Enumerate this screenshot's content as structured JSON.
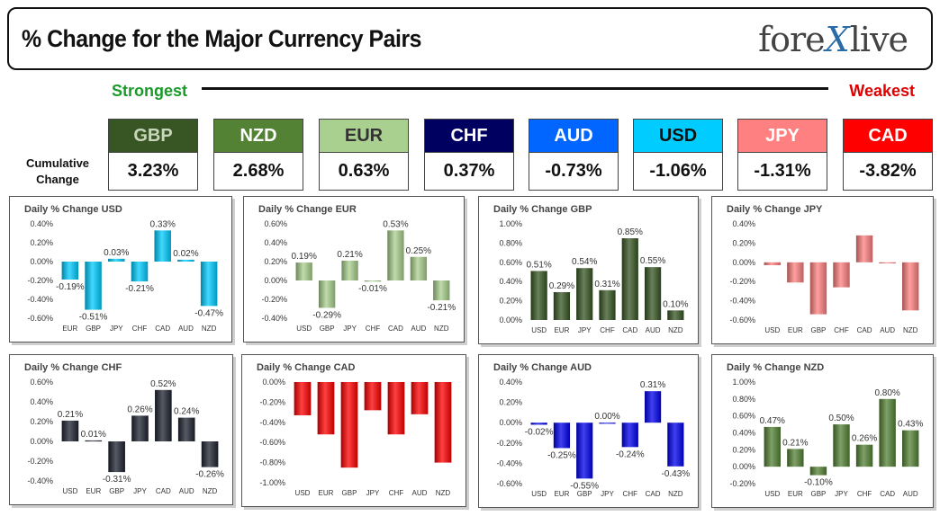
{
  "header": {
    "title": "% Change for the Major Currency Pairs",
    "logo_left": "fore",
    "logo_x": "X",
    "logo_right": "live"
  },
  "rank": {
    "strongest": "Strongest",
    "weakest": "Weakest",
    "cumulative_label_1": "Cumulative",
    "cumulative_label_2": "Change"
  },
  "currencies": [
    {
      "code": "GBP",
      "value": "3.23%",
      "color": "#375623",
      "text_color": "#c8d6bc"
    },
    {
      "code": "NZD",
      "value": "2.68%",
      "color": "#548235",
      "text_color": "#ffffff"
    },
    {
      "code": "EUR",
      "value": "0.63%",
      "color": "#a9d08e",
      "text_color": "#333333"
    },
    {
      "code": "CHF",
      "value": "0.37%",
      "color": "#000060",
      "text_color": "#ffffff"
    },
    {
      "code": "AUD",
      "value": "-0.73%",
      "color": "#0066ff",
      "text_color": "#ffffff"
    },
    {
      "code": "USD",
      "value": "-1.06%",
      "color": "#00ccff",
      "text_color": "#111111"
    },
    {
      "code": "JPY",
      "value": "-1.31%",
      "color": "#ff8080",
      "text_color": "#ffffff"
    },
    {
      "code": "CAD",
      "value": "-3.82%",
      "color": "#ff0000",
      "text_color": "#ffffff"
    }
  ],
  "chart_data": [
    {
      "type": "bar",
      "title": "Daily % Change USD",
      "categories": [
        "EUR",
        "GBP",
        "JPY",
        "CHF",
        "CAD",
        "AUD",
        "NZD"
      ],
      "values": [
        -0.19,
        -0.51,
        0.03,
        -0.21,
        0.33,
        0.02,
        -0.47
      ],
      "labels": [
        "-0.19%",
        "-0.51%",
        "0.03%",
        "-0.21%",
        "0.33%",
        "0.02%",
        "-0.47%"
      ],
      "show_labels": true,
      "ylim": [
        -0.6,
        0.4
      ],
      "yticks": [
        0.4,
        0.2,
        0.0,
        -0.2,
        -0.4,
        -0.6
      ],
      "ytick_labels": [
        "0.40%",
        "0.20%",
        "0.00%",
        "-0.20%",
        "-0.40%",
        "-0.60%"
      ],
      "color": "#00ccff"
    },
    {
      "type": "bar",
      "title": "Daily % Change EUR",
      "categories": [
        "USD",
        "GBP",
        "JPY",
        "CHF",
        "CAD",
        "AUD",
        "NZD"
      ],
      "values": [
        0.19,
        -0.29,
        0.21,
        -0.01,
        0.53,
        0.25,
        -0.21
      ],
      "labels": [
        "0.19%",
        "-0.29%",
        "0.21%",
        "-0.01%",
        "0.53%",
        "0.25%",
        "-0.21%"
      ],
      "show_labels": true,
      "ylim": [
        -0.4,
        0.6
      ],
      "yticks": [
        0.6,
        0.4,
        0.2,
        0.0,
        -0.2,
        -0.4
      ],
      "ytick_labels": [
        "0.60%",
        "0.40%",
        "0.20%",
        "0.00%",
        "-0.20%",
        "-0.40%"
      ],
      "color": "#a9d08e"
    },
    {
      "type": "bar",
      "title": "Daily % Change GBP",
      "categories": [
        "USD",
        "EUR",
        "JPY",
        "CHF",
        "CAD",
        "AUD",
        "NZD"
      ],
      "values": [
        0.51,
        0.29,
        0.54,
        0.31,
        0.85,
        0.55,
        0.1
      ],
      "labels": [
        "0.51%",
        "0.29%",
        "0.54%",
        "0.31%",
        "0.85%",
        "0.55%",
        "0.10%"
      ],
      "show_labels": true,
      "ylim": [
        0.0,
        1.0
      ],
      "yticks": [
        1.0,
        0.8,
        0.6,
        0.4,
        0.2,
        0.0
      ],
      "ytick_labels": [
        "1.00%",
        "0.80%",
        "0.60%",
        "0.40%",
        "0.20%",
        "0.00%"
      ],
      "color": "#375623"
    },
    {
      "type": "bar",
      "title": "Daily % Change JPY",
      "categories": [
        "USD",
        "EUR",
        "GBP",
        "CHF",
        "CAD",
        "AUD",
        "NZD"
      ],
      "values": [
        -0.03,
        -0.21,
        -0.54,
        -0.26,
        0.28,
        -0.01,
        -0.5
      ],
      "labels": [],
      "show_labels": false,
      "ylim": [
        -0.6,
        0.4
      ],
      "yticks": [
        0.4,
        0.2,
        0.0,
        -0.2,
        -0.4,
        -0.6
      ],
      "ytick_labels": [
        "0.40%",
        "0.20%",
        "0.00%",
        "-0.20%",
        "-0.40%",
        "-0.60%"
      ],
      "color": "#ff8080"
    },
    {
      "type": "bar",
      "title": "Daily % Change CHF",
      "categories": [
        "USD",
        "EUR",
        "GBP",
        "JPY",
        "CAD",
        "AUD",
        "NZD"
      ],
      "values": [
        0.21,
        0.01,
        -0.31,
        0.26,
        0.52,
        0.24,
        -0.26
      ],
      "labels": [
        "0.21%",
        "0.01%",
        "-0.31%",
        "0.26%",
        "0.52%",
        "0.24%",
        "-0.26%"
      ],
      "show_labels": true,
      "ylim": [
        -0.4,
        0.6
      ],
      "yticks": [
        0.6,
        0.4,
        0.2,
        0.0,
        -0.2,
        -0.4
      ],
      "ytick_labels": [
        "0.60%",
        "0.40%",
        "0.20%",
        "0.00%",
        "-0.20%",
        "-0.40%"
      ],
      "color": "#1e2330"
    },
    {
      "type": "bar",
      "title": "Daily % Change CAD",
      "categories": [
        "USD",
        "EUR",
        "GBP",
        "JPY",
        "CHF",
        "AUD",
        "NZD"
      ],
      "values": [
        -0.33,
        -0.52,
        -0.85,
        -0.28,
        -0.52,
        -0.32,
        -0.8
      ],
      "labels": [],
      "show_labels": false,
      "ylim": [
        -1.0,
        0.0
      ],
      "yticks": [
        0.0,
        -0.2,
        -0.4,
        -0.6,
        -0.8,
        -1.0
      ],
      "ytick_labels": [
        "0.00%",
        "-0.20%",
        "-0.40%",
        "-0.60%",
        "-0.80%",
        "-1.00%"
      ],
      "color": "#ff0000"
    },
    {
      "type": "bar",
      "title": "Daily % Change AUD",
      "categories": [
        "USD",
        "EUR",
        "GBP",
        "JPY",
        "CHF",
        "CAD",
        "NZD"
      ],
      "values": [
        -0.02,
        -0.25,
        -0.55,
        0.0,
        -0.24,
        0.31,
        -0.43
      ],
      "labels": [
        "-0.02%",
        "-0.25%",
        "-0.55%",
        "0.00%",
        "-0.24%",
        "0.31%",
        "-0.43%"
      ],
      "show_labels": true,
      "ylim": [
        -0.6,
        0.4
      ],
      "yticks": [
        0.4,
        0.2,
        0.0,
        -0.2,
        -0.4,
        -0.6
      ],
      "ytick_labels": [
        "0.40%",
        "0.20%",
        "0.00%",
        "-0.20%",
        "-0.40%",
        "-0.60%"
      ],
      "color": "#0000ee"
    },
    {
      "type": "bar",
      "title": "Daily % Change NZD",
      "categories": [
        "USD",
        "EUR",
        "GBP",
        "JPY",
        "CHF",
        "CAD",
        "AUD"
      ],
      "values": [
        0.47,
        0.21,
        -0.1,
        0.5,
        0.26,
        0.8,
        0.43
      ],
      "labels": [
        "0.47%",
        "0.21%",
        "-0.10%",
        "0.50%",
        "0.26%",
        "0.80%",
        "0.43%"
      ],
      "show_labels": true,
      "ylim": [
        -0.2,
        1.0
      ],
      "yticks": [
        1.0,
        0.8,
        0.6,
        0.4,
        0.2,
        0.0,
        -0.2
      ],
      "ytick_labels": [
        "1.00%",
        "0.80%",
        "0.60%",
        "0.40%",
        "0.20%",
        "0.00%",
        "-0.20%"
      ],
      "color": "#548235"
    }
  ]
}
